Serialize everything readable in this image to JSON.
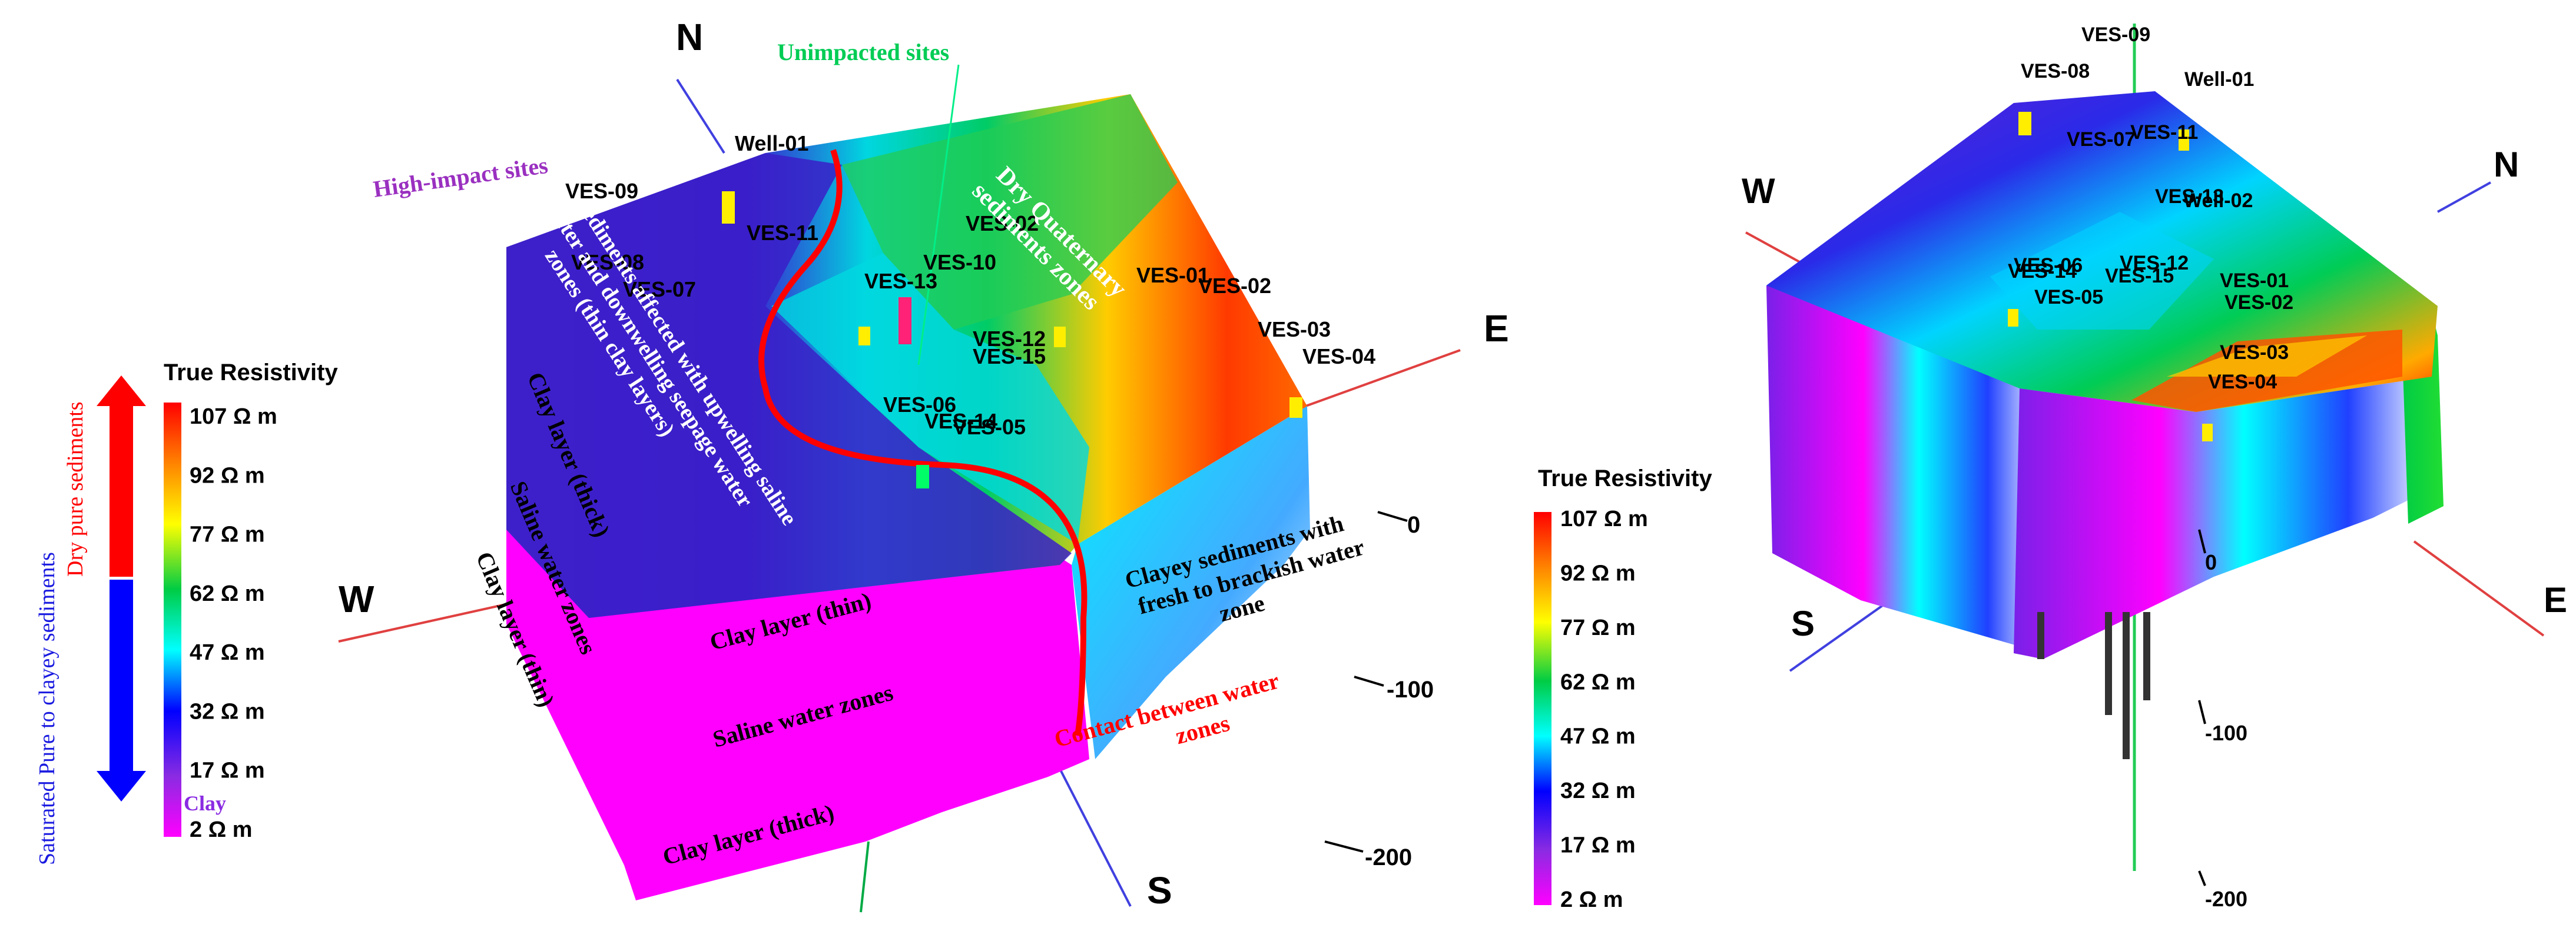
{
  "legend_left": {
    "title": "True Resistivity",
    "ticks": [
      "107 Ω m",
      "92 Ω m",
      "77 Ω m",
      "62 Ω m",
      "47 Ω m",
      "32 Ω m",
      "17 Ω m",
      "2 Ω m"
    ],
    "clay_label": "Clay",
    "arrow_up_label": "Dry pure sediments",
    "arrow_down_label": "Saturated Pure to clayey sediments",
    "arrow_up_color": "#ff0000",
    "arrow_down_color": "#0000ff"
  },
  "legend_right": {
    "title": "True Resistivity",
    "ticks": [
      "107 Ω m",
      "92 Ω m",
      "77 Ω m",
      "62 Ω m",
      "47 Ω m",
      "32 Ω m",
      "17 Ω m",
      "2 Ω m"
    ]
  },
  "colormap": [
    "#ff0000",
    "#ff8c00",
    "#ffff00",
    "#00cc44",
    "#00ffff",
    "#0000ff",
    "#8a2be2",
    "#ff00ff"
  ],
  "left_model": {
    "directions": {
      "n": "N",
      "e": "E",
      "s": "S",
      "w": "W"
    },
    "depth_ticks": [
      "0",
      "-100",
      "-200"
    ],
    "well": "Well-01",
    "ves": [
      "VES-09",
      "VES-11",
      "VES-08",
      "VES-07",
      "VES-13",
      "VES-10",
      "VES-02",
      "VES-01",
      "VES-02",
      "VES-12",
      "VES-15",
      "VES-03",
      "VES-04",
      "VES-06",
      "VES-14",
      "VES-05"
    ],
    "annotations": {
      "unimpacted": "Unimpacted sites",
      "high_impact": "High-impact sites",
      "dry_quaternary": "Dry Quaternary sediments zones",
      "upwelling": "sediments affected with upwelling saline water and downwelling seepage water zones (thin clay layers)",
      "clay_thick_1": "Clay layer (thick)",
      "saline_1": "Saline water zones",
      "clay_thin_1": "Clay layer (thin)",
      "clay_thin_2": "Clay layer (thin)",
      "saline_2": "Saline water zones",
      "clay_thick_2": "Clay layer (thick)",
      "clayey": "Clayey sediments with fresh to brackish water zone",
      "contact": "Contact between water zones"
    }
  },
  "right_model": {
    "directions": {
      "n": "N",
      "e": "E",
      "s": "S",
      "w": "W"
    },
    "depth_ticks": [
      "0",
      "-100",
      "-200"
    ],
    "labels": [
      "VES-09",
      "VES-08",
      "Well-01",
      "VES-07",
      "VES-11",
      "VES-13",
      "Well-02",
      "VES-06",
      "VES-12",
      "VES-14",
      "VES-15",
      "VES-05",
      "VES-01",
      "VES-02",
      "VES-03",
      "VES-04"
    ]
  }
}
